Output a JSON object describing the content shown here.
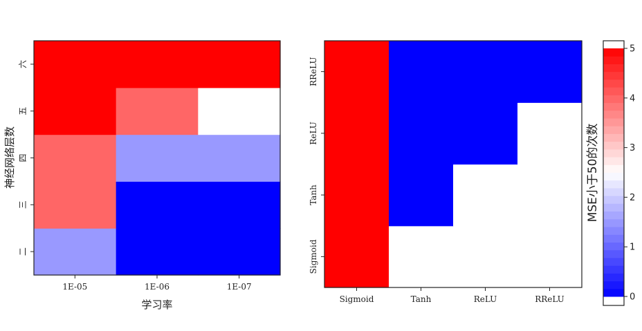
{
  "chart_data": [
    {
      "type": "heatmap",
      "xlabel": "学习率",
      "ylabel": "神经网络层数",
      "x_categories": [
        "1E-05",
        "1E-06",
        "1E-07"
      ],
      "y_categories": [
        "二",
        "三",
        "四",
        "五",
        "六"
      ],
      "values": [
        [
          1.5,
          0,
          0
        ],
        [
          4,
          0,
          0
        ],
        [
          4,
          1.5,
          1.5
        ],
        [
          5,
          4,
          2.5
        ],
        [
          5,
          5,
          5
        ]
      ]
    },
    {
      "type": "heatmap",
      "xlabel": "",
      "ylabel": "",
      "x_categories": [
        "Sigmoid",
        "Tanh",
        "ReLU",
        "RReLU"
      ],
      "y_categories": [
        "Sigmoid",
        "Tanh",
        "ReLU",
        "RReLU"
      ],
      "values": [
        [
          5,
          null,
          null,
          null
        ],
        [
          5,
          0,
          null,
          null
        ],
        [
          5,
          0,
          0,
          null
        ],
        [
          5,
          0,
          0,
          0
        ]
      ]
    }
  ],
  "colorbar": {
    "title": "MSE小于50的次数",
    "ticks": [
      0,
      1,
      2,
      3,
      4,
      5
    ],
    "range": [
      0,
      5
    ],
    "low_color": "#0000ff",
    "mid_color": "#ffffff",
    "high_color": "#ff0000"
  }
}
